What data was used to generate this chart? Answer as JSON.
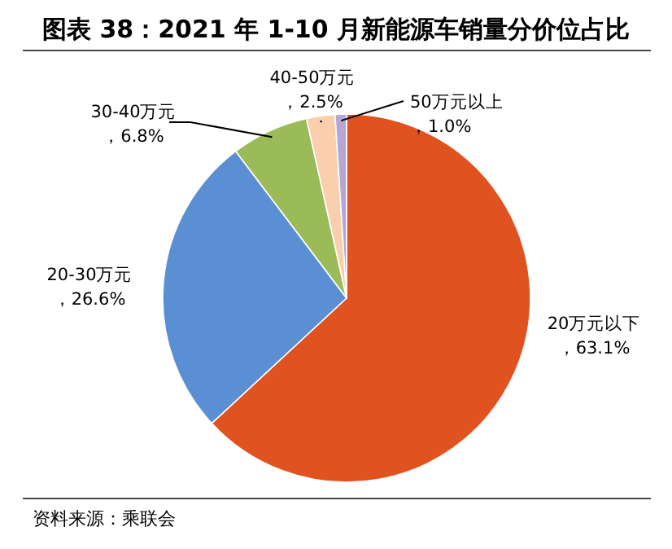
{
  "chart_data": {
    "type": "pie",
    "title": "图表 38：2021 年 1-10 月新能源车销量分价位占比",
    "categories": [
      "20万元以下",
      "20-30万元",
      "30-40万元",
      "40-50万元",
      "50万元以上"
    ],
    "values": [
      63.1,
      26.6,
      6.8,
      2.5,
      1.0
    ],
    "value_labels": [
      "，63.1%",
      "，26.6%",
      "，6.8%",
      "，2.5%",
      "，1.0%"
    ],
    "colors": [
      "#e0521f",
      "#5b8fd4",
      "#9bbb59",
      "#f9cfae",
      "#b4a7d6"
    ],
    "annotations": [
      "资料来源：乘联会"
    ]
  }
}
